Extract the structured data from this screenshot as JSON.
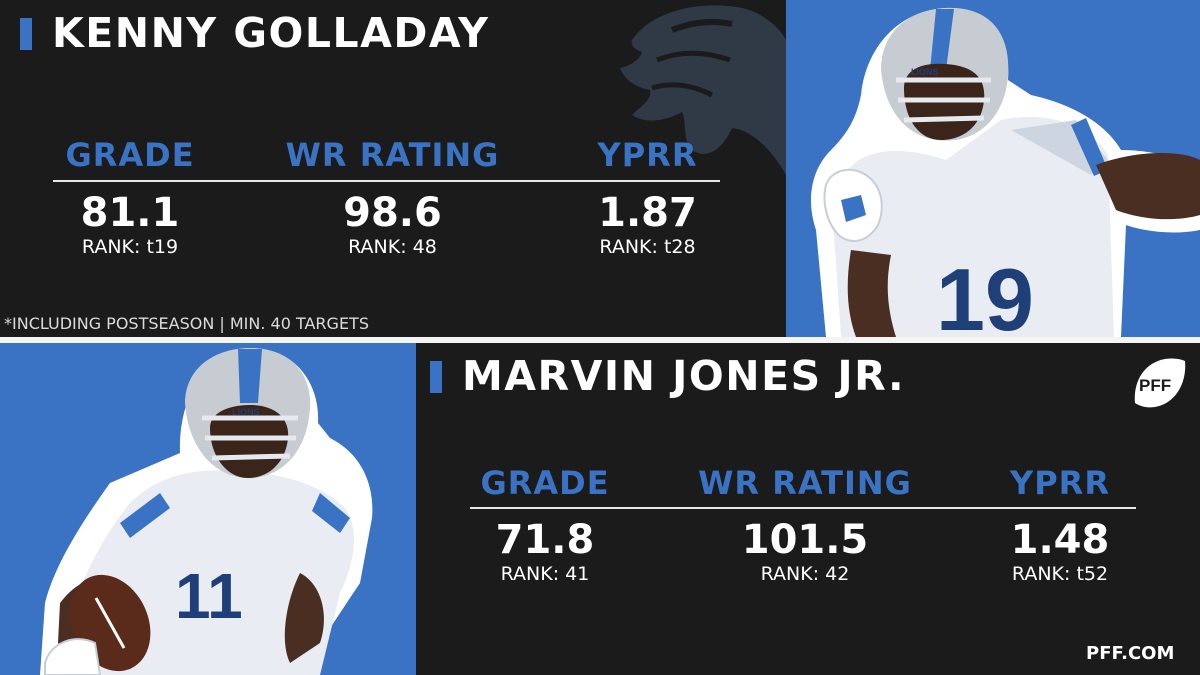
{
  "players": [
    {
      "name": "KENNY GOLLADAY",
      "stats": [
        {
          "label": "GRADE",
          "value": "81.1",
          "rank": "RANK: t19"
        },
        {
          "label": "WR RATING",
          "value": "98.6",
          "rank": "RANK: 48"
        },
        {
          "label": "YPRR",
          "value": "1.87",
          "rank": "RANK: t28"
        }
      ],
      "jersey_number": "19"
    },
    {
      "name": "MARVIN JONES JR.",
      "stats": [
        {
          "label": "GRADE",
          "value": "71.8",
          "rank": "RANK: 41"
        },
        {
          "label": "WR RATING",
          "value": "101.5",
          "rank": "RANK: 42"
        },
        {
          "label": "YPRR",
          "value": "1.48",
          "rank": "RANK: t52"
        }
      ],
      "jersey_number": "11"
    }
  ],
  "footnote": "*INCLUDING POSTSEASON | MIN. 40 TARGETS",
  "brand": {
    "logo_text": "PFF",
    "site": "PFF.COM"
  },
  "helmet_text": "LIONS",
  "colors": {
    "accent": "#3a73c4",
    "panel_dark": "#1b1b1b",
    "white": "#ffffff"
  },
  "icons": [
    "lions-logo-watermark-icon",
    "pff-logo-icon"
  ]
}
